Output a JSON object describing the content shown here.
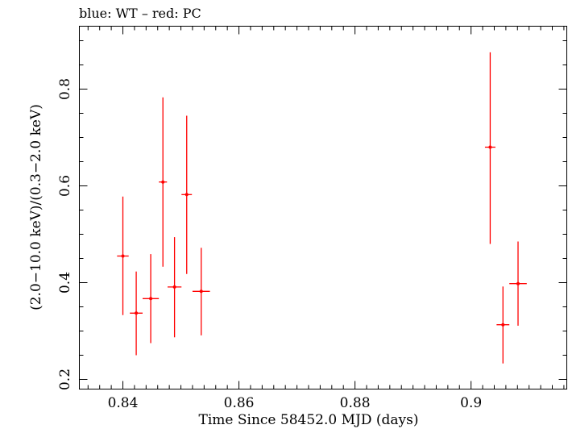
{
  "chart_data": {
    "type": "scatter",
    "title": "blue: WT – red: PC",
    "xlabel": "Time Since 58452.0 MJD (days)",
    "ylabel": "(2.0−10.0 keV)/(0.3−2.0 keV)",
    "xlim": [
      0.8325,
      0.9165
    ],
    "ylim": [
      0.18,
      0.93
    ],
    "xticks": [
      0.84,
      0.86,
      0.88,
      0.9
    ],
    "xtick_labels": [
      "0.84",
      "0.86",
      "0.88",
      "0.9"
    ],
    "yticks": [
      0.2,
      0.4,
      0.6,
      0.8
    ],
    "ytick_labels": [
      "0.2",
      "0.4",
      "0.6",
      "0.8"
    ],
    "series": [
      {
        "name": "PC",
        "color": "#ff0000",
        "points": [
          {
            "x": 0.84,
            "y": 0.455,
            "xerr": 0.001,
            "ylo": 0.333,
            "yhi": 0.578
          },
          {
            "x": 0.8423,
            "y": 0.337,
            "xerr": 0.0011,
            "ylo": 0.25,
            "yhi": 0.423
          },
          {
            "x": 0.8448,
            "y": 0.367,
            "xerr": 0.0014,
            "ylo": 0.275,
            "yhi": 0.459
          },
          {
            "x": 0.8469,
            "y": 0.608,
            "xerr": 0.0007,
            "ylo": 0.433,
            "yhi": 0.783
          },
          {
            "x": 0.8489,
            "y": 0.391,
            "xerr": 0.0012,
            "ylo": 0.287,
            "yhi": 0.494
          },
          {
            "x": 0.851,
            "y": 0.582,
            "xerr": 0.0009,
            "ylo": 0.418,
            "yhi": 0.745
          },
          {
            "x": 0.8535,
            "y": 0.382,
            "xerr": 0.0015,
            "ylo": 0.291,
            "yhi": 0.472
          },
          {
            "x": 0.9033,
            "y": 0.68,
            "xerr": 0.0009,
            "ylo": 0.48,
            "yhi": 0.876
          },
          {
            "x": 0.9055,
            "y": 0.313,
            "xerr": 0.0011,
            "ylo": 0.233,
            "yhi": 0.392
          },
          {
            "x": 0.9081,
            "y": 0.398,
            "xerr": 0.0015,
            "ylo": 0.311,
            "yhi": 0.485
          }
        ]
      }
    ]
  }
}
